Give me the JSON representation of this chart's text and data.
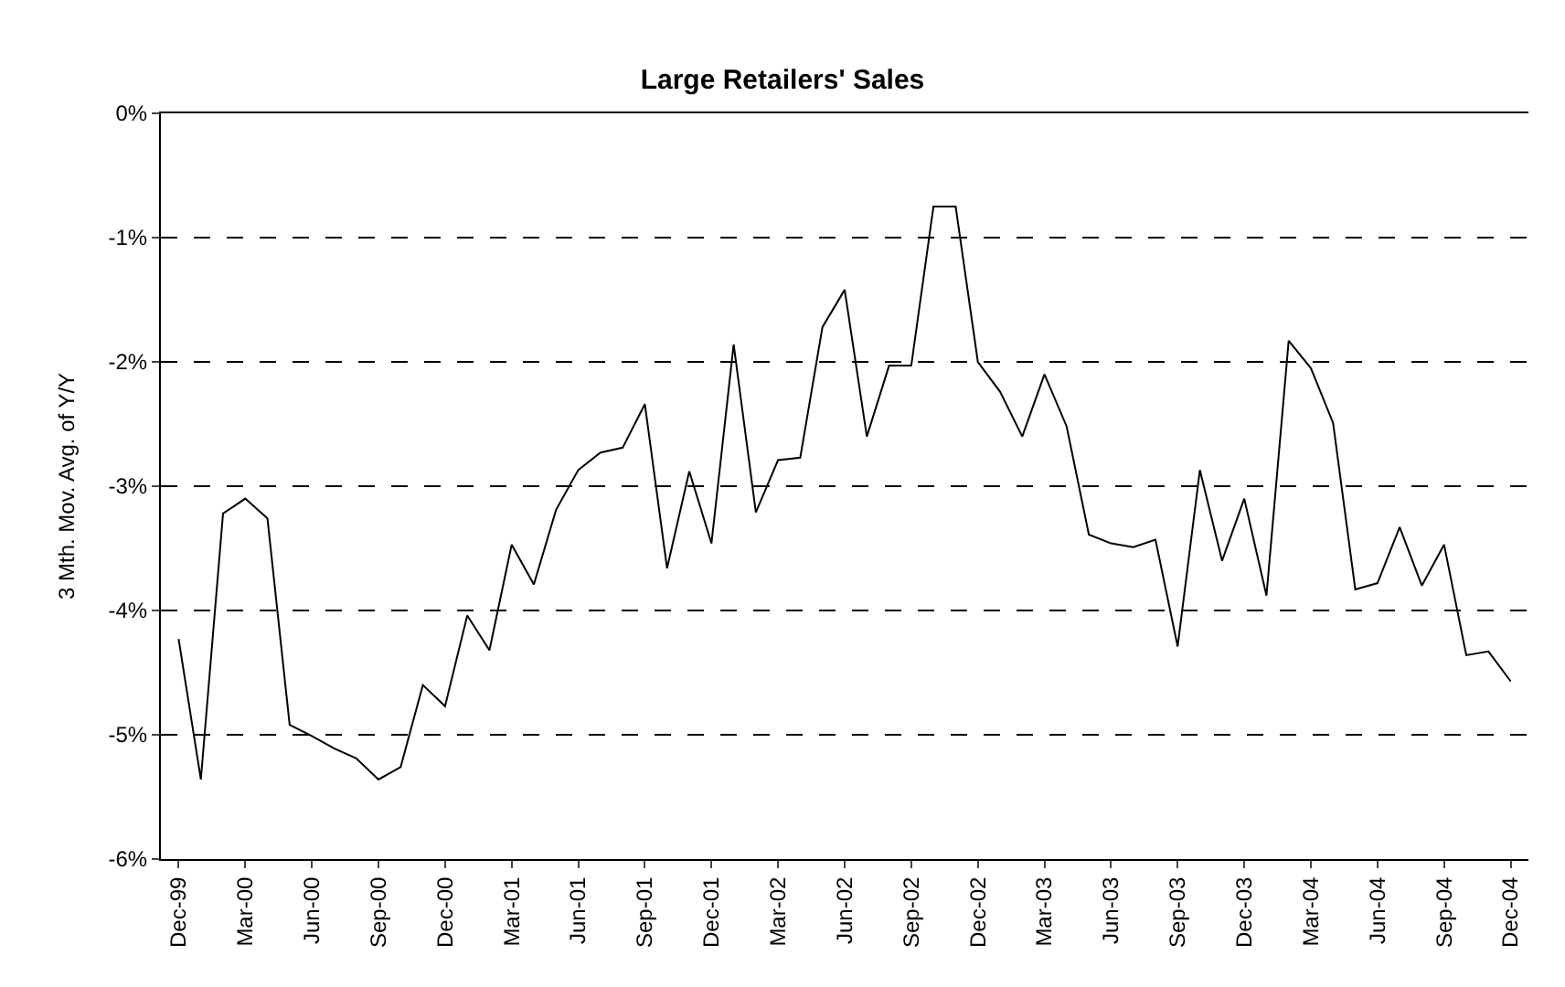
{
  "chart_data": {
    "type": "line",
    "title": "Large Retailers' Sales",
    "ylabel": "3 Mth. Mov. Avg. of Y/Y",
    "categories": [
      "Dec-99",
      null,
      null,
      "Mar-00",
      null,
      null,
      "Jun-00",
      null,
      null,
      "Sep-00",
      null,
      null,
      "Dec-00",
      null,
      null,
      "Mar-01",
      null,
      null,
      "Jun-01",
      null,
      null,
      "Sep-01",
      null,
      null,
      "Dec-01",
      null,
      null,
      "Mar-02",
      null,
      null,
      "Jun-02",
      null,
      null,
      "Sep-02",
      null,
      null,
      "Dec-02",
      null,
      null,
      "Mar-03",
      null,
      null,
      "Jun-03",
      null,
      null,
      "Sep-03",
      null,
      null,
      "Dec-03",
      null,
      null,
      "Mar-04",
      null,
      null,
      "Jun-04",
      null,
      null,
      "Sep-04",
      null,
      null,
      "Dec-04"
    ],
    "series": [
      {
        "color": "#000000",
        "values": [
          -4.23,
          -5.36,
          -3.22,
          -3.1,
          -3.26,
          -4.92,
          -5.01,
          -5.11,
          -5.19,
          -5.36,
          -5.26,
          -4.6,
          -4.77,
          -4.04,
          -4.32,
          -3.47,
          -3.79,
          -3.19,
          -2.87,
          -2.73,
          -2.69,
          -2.34,
          -3.66,
          -2.88,
          -3.46,
          -1.86,
          -3.21,
          -2.79,
          -2.77,
          -1.72,
          -1.42,
          -2.6,
          -2.03,
          -2.03,
          -0.75,
          -0.75,
          -2.0,
          -2.24,
          -2.6,
          -2.1,
          -2.52,
          -3.39,
          -3.46,
          -3.49,
          -3.43,
          -4.29,
          -2.87,
          -3.6,
          -3.1,
          -3.88,
          -1.83,
          -2.05,
          -2.49,
          -3.83,
          -3.78,
          -3.33,
          -3.8,
          -3.47,
          -4.36,
          -4.33,
          -4.57
        ]
      }
    ],
    "ylim": [
      -6,
      0
    ],
    "yticks": [
      {
        "value": -6,
        "label": "-6%"
      },
      {
        "value": -5,
        "label": "-5%"
      },
      {
        "value": -4,
        "label": "-4%"
      },
      {
        "value": -3,
        "label": "-3%"
      },
      {
        "value": -2,
        "label": "-2%"
      },
      {
        "value": -1,
        "label": "-1%"
      },
      {
        "value": 0,
        "label": "0%"
      }
    ],
    "grid": "y",
    "marker": "none",
    "line_style": "solid"
  }
}
